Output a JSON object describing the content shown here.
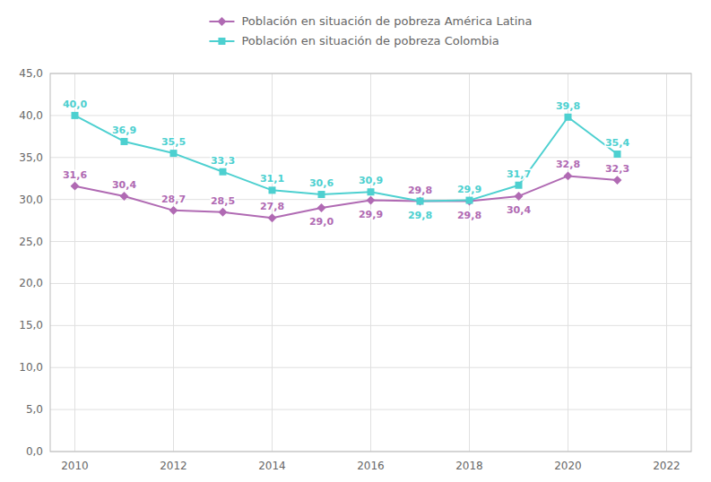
{
  "chart_data": {
    "type": "line",
    "x": [
      2010,
      2011,
      2012,
      2013,
      2014,
      2015,
      2016,
      2017,
      2018,
      2019,
      2020,
      2021
    ],
    "series": [
      {
        "name": "Población en situación de pobreza América Latina",
        "color": "#b06ab3",
        "marker": "diamond",
        "values": [
          31.6,
          30.4,
          28.7,
          28.5,
          27.8,
          29.0,
          29.9,
          29.8,
          29.8,
          30.4,
          32.8,
          32.3
        ],
        "value_labels": [
          "31,6",
          "30,4",
          "28,7",
          "28,5",
          "27,8",
          "29,0",
          "29,9",
          "29,8",
          "29,8",
          "30,4",
          "32,8",
          "32,3"
        ]
      },
      {
        "name": "Población en situación de pobreza Colombia",
        "color": "#4dd0d0",
        "marker": "square",
        "values": [
          40.0,
          36.9,
          35.5,
          33.3,
          31.1,
          30.6,
          30.9,
          29.8,
          29.9,
          31.7,
          39.8,
          35.4
        ],
        "value_labels": [
          "40,0",
          "36,9",
          "35,5",
          "33,3",
          "31,1",
          "30,6",
          "30,9",
          "29,8",
          "29,9",
          "31,7",
          "39,8",
          "35,4"
        ]
      }
    ],
    "xlim": [
      2009.5,
      2022.5
    ],
    "xticks": [
      2010,
      2012,
      2014,
      2016,
      2018,
      2020,
      2022
    ],
    "ylim": [
      0,
      45
    ],
    "yticks": [
      {
        "value": 0.0,
        "label": "0,0"
      },
      {
        "value": 5.0,
        "label": "5,0"
      },
      {
        "value": 10.0,
        "label": "10,0"
      },
      {
        "value": 15.0,
        "label": "15,0"
      },
      {
        "value": 20.0,
        "label": "20,0"
      },
      {
        "value": 25.0,
        "label": "25,0"
      },
      {
        "value": 30.0,
        "label": "30,0"
      },
      {
        "value": 35.0,
        "label": "35,0"
      },
      {
        "value": 40.0,
        "label": "40,0"
      },
      {
        "value": 45.0,
        "label": "45,0"
      }
    ],
    "grid": true,
    "legend": "top",
    "data_labels": true
  }
}
